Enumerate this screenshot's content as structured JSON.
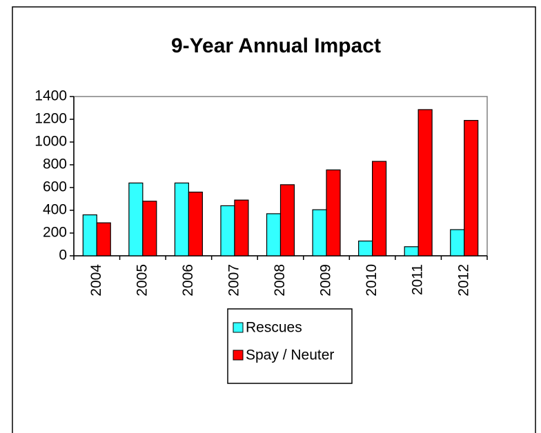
{
  "chart_data": {
    "type": "bar",
    "title": "9-Year Annual Impact",
    "categories": [
      "2004",
      "2005",
      "2006",
      "2007",
      "2008",
      "2009",
      "2010",
      "2011",
      "2012"
    ],
    "series": [
      {
        "name": "Rescues",
        "color": "#33ffff",
        "values": [
          360,
          640,
          640,
          440,
          370,
          405,
          130,
          80,
          230
        ]
      },
      {
        "name": "Spay / Neuter",
        "color": "#ff0000",
        "values": [
          290,
          480,
          560,
          490,
          625,
          755,
          830,
          1285,
          1190
        ]
      }
    ],
    "ylim": [
      0,
      1400
    ],
    "yticks": [
      0,
      200,
      400,
      600,
      800,
      1000,
      1200,
      1400
    ],
    "grid": false,
    "legend": "bottom"
  }
}
